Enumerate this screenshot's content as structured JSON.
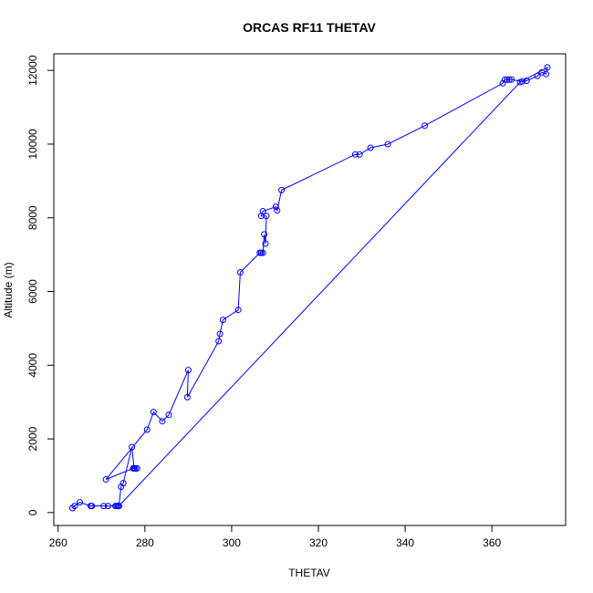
{
  "chart_data": {
    "type": "scatter",
    "title": "ORCAS RF11 THETAV",
    "xlabel": "THETAV",
    "ylabel": "Altitude (m)",
    "xlim": [
      259,
      377
    ],
    "ylim": [
      -350,
      12450
    ],
    "xticks": [
      260,
      280,
      300,
      320,
      340,
      360
    ],
    "yticks": [
      0,
      2000,
      4000,
      6000,
      8000,
      10000,
      12000
    ],
    "grid": false,
    "legend": "none",
    "style": "points and connecting lines",
    "color": "#0000ff",
    "series": [
      {
        "x": [
          263.3,
          263.8,
          265.0,
          267.5,
          267.8,
          270.5,
          271.5,
          273.2,
          273.5,
          273.8,
          274.0,
          274.5,
          275.0,
          277.0,
          277.5,
          277.8,
          278.2,
          277.3,
          271.0,
          280.5,
          282.0,
          284.0,
          285.5,
          290.0,
          289.8,
          297.0,
          297.3,
          298.0,
          301.5,
          302.0,
          306.5,
          306.8,
          307.2,
          307.5,
          307.8,
          308.0,
          306.8,
          307.2,
          310.2,
          310.5,
          311.5,
          328.5,
          329.5,
          332.0,
          336.0,
          344.5,
          362.5,
          363.0,
          363.5,
          364.0,
          364.5,
          367.0,
          368.0,
          370.5,
          371.5,
          372.5,
          372.8,
          366.5,
          274.0
        ],
        "y": [
          120,
          180,
          280,
          180,
          180,
          180,
          180,
          180,
          180,
          180,
          180,
          700,
          800,
          1780,
          1200,
          1200,
          1200,
          1200,
          900,
          2250,
          2730,
          2480,
          2650,
          3870,
          3130,
          4650,
          4850,
          5230,
          5500,
          6520,
          7050,
          7050,
          7050,
          7550,
          7300,
          8050,
          8050,
          8180,
          8300,
          8200,
          8750,
          9720,
          9720,
          9900,
          10000,
          10500,
          11650,
          11750,
          11750,
          11750,
          11750,
          11700,
          11720,
          11850,
          11950,
          11900,
          12080,
          11680,
          180
        ]
      }
    ]
  }
}
